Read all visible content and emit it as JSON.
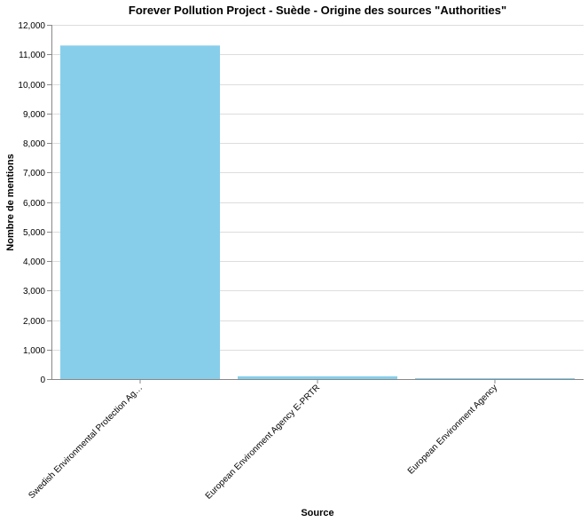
{
  "chart_data": {
    "type": "bar",
    "title": "Forever Pollution Project - Suède - Origine des sources \"Authorities\"",
    "xlabel": "Source",
    "ylabel": "Nombre de mentions",
    "categories": [
      "Swedish Environmental Protection Ag…",
      "European Environment Agency E-PRTR",
      "European Environment Agency"
    ],
    "values": [
      11300,
      95,
      30
    ],
    "ylim": [
      0,
      12000
    ],
    "yticks": [
      0,
      1000,
      2000,
      3000,
      4000,
      5000,
      6000,
      7000,
      8000,
      9000,
      10000,
      11000,
      12000
    ],
    "ytick_labels": [
      "0",
      "1,000",
      "2,000",
      "3,000",
      "4,000",
      "5,000",
      "6,000",
      "7,000",
      "8,000",
      "9,000",
      "10,000",
      "11,000",
      "12,000"
    ],
    "grid": true,
    "legend": "none",
    "colors": {
      "bar": "#87ceeb",
      "grid": "#dddddd",
      "axis": "#888888"
    }
  }
}
